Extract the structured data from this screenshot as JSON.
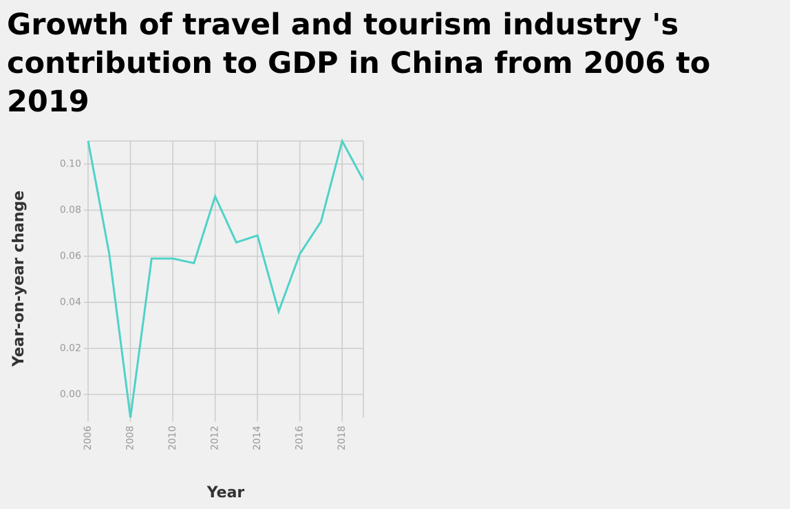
{
  "chart_data": {
    "type": "line",
    "title": "Growth of travel and tourism industry 's contribution to GDP in China from 2006 to 2019",
    "xlabel": "Year",
    "ylabel": "Year-on-year change",
    "x": [
      2006,
      2007,
      2008,
      2009,
      2010,
      2011,
      2012,
      2013,
      2014,
      2015,
      2016,
      2017,
      2018,
      2019
    ],
    "series": [
      {
        "values": [
          0.11,
          0.061,
          -0.01,
          0.059,
          0.059,
          0.057,
          0.086,
          0.066,
          0.069,
          0.036,
          0.061,
          0.075,
          0.11,
          0.093
        ]
      }
    ],
    "xlim": [
      2006,
      2019
    ],
    "ylim": [
      -0.01,
      0.11
    ],
    "xticks": [
      "2006",
      "2008",
      "2010",
      "2012",
      "2014",
      "2016",
      "2018"
    ],
    "yticks": [
      "0.00",
      "0.02",
      "0.04",
      "0.06",
      "0.08",
      "0.10"
    ],
    "grid": true,
    "line_color": "#50d2c8"
  }
}
